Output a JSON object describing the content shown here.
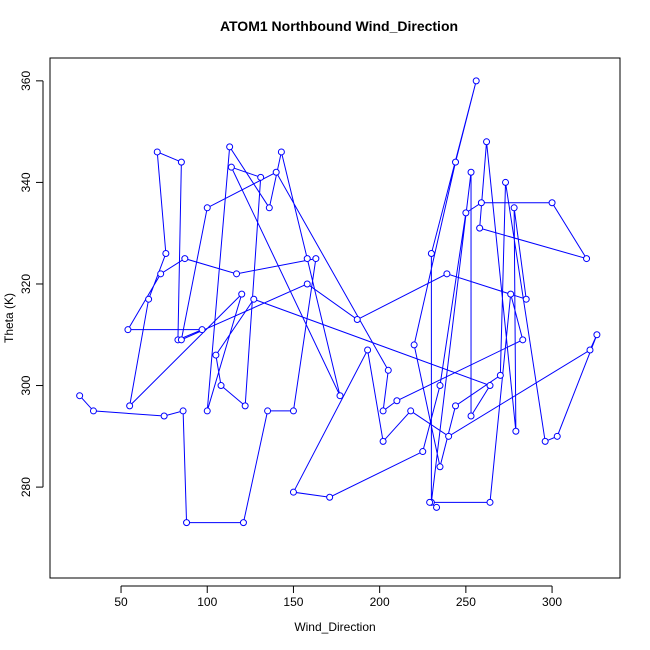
{
  "chart_data": {
    "type": "scatter",
    "title": "ATOM1 Northbound Wind_Direction",
    "x_label": "Wind_Direction",
    "y_label": "Theta (K)",
    "color": "#0000ff",
    "connect": true,
    "x": [
      26,
      34,
      75,
      86,
      88,
      121,
      135,
      150,
      163,
      117,
      87,
      73,
      54,
      97,
      83,
      85,
      71,
      76,
      66,
      55,
      120,
      100,
      113,
      136,
      143,
      158,
      177,
      114,
      131,
      122,
      108,
      105,
      127,
      264,
      253,
      253,
      230,
      230,
      256,
      244,
      220,
      235,
      244,
      270,
      273,
      296,
      303,
      326,
      322,
      240,
      218,
      202,
      193,
      150,
      171,
      225,
      235,
      250,
      259,
      300,
      320,
      258,
      262,
      279,
      278,
      285,
      239,
      187,
      158,
      85,
      100,
      140,
      205,
      202,
      210,
      283,
      276,
      264,
      229,
      233
    ],
    "values": [
      298,
      295,
      294,
      295,
      273,
      273,
      295,
      295,
      325,
      322,
      325,
      322,
      311,
      311,
      309,
      344,
      346,
      326,
      317,
      296,
      318,
      295,
      347,
      335,
      346,
      325,
      298,
      343,
      341,
      296,
      300,
      306,
      317,
      300,
      294,
      342,
      277,
      326,
      360,
      344,
      308,
      284,
      296,
      302,
      340,
      289,
      290,
      310,
      307,
      290,
      295,
      289,
      307,
      279,
      278,
      287,
      300,
      334,
      336,
      336,
      325,
      331,
      348,
      291,
      335,
      317,
      322,
      313,
      320,
      309,
      335,
      342,
      303,
      295,
      297,
      309,
      318,
      277,
      277,
      276
    ],
    "xlim": [
      8.8,
      339.4
    ],
    "ylim": [
      262.1,
      364.5
    ],
    "xticks": [
      50,
      100,
      150,
      200,
      250,
      300
    ],
    "yticks": [
      280,
      300,
      320,
      340,
      360
    ]
  }
}
